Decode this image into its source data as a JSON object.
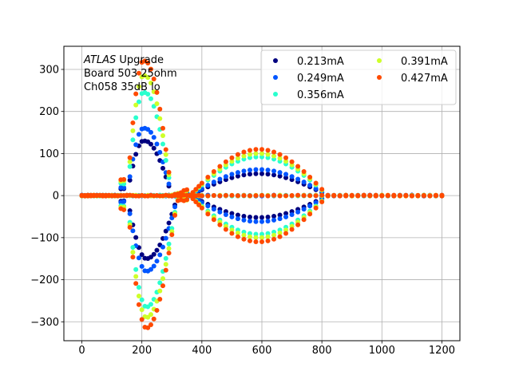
{
  "chart_data": {
    "type": "scatter",
    "annotation": {
      "lines": [
        {
          "italic": "ATLAS",
          "rest": " Upgrade"
        },
        {
          "italic": "",
          "rest": " Board 503 25ohm"
        },
        {
          "italic": "",
          "rest": " Ch058 35dB lo"
        }
      ]
    },
    "xlim": [
      -60,
      1260
    ],
    "ylim": [
      -345,
      355
    ],
    "xticks": [
      0,
      200,
      400,
      600,
      800,
      1000,
      1200
    ],
    "yticks": [
      -300,
      -200,
      -100,
      0,
      100,
      200,
      300
    ],
    "grid": true,
    "legend_placement": "upper-right, 2 columns",
    "series": [
      {
        "name": "0.213mA",
        "color": "#00007f",
        "pulse": {
          "peak": 130,
          "neg": -150,
          "negAt": 220,
          "posAt": 160,
          "eye": 52,
          "noise": 2
        }
      },
      {
        "name": "0.249mA",
        "color": "#0055ff",
        "pulse": {
          "peak": 160,
          "neg": -180,
          "negAt": 215,
          "posAt": 165,
          "eye": 62,
          "noise": 2
        }
      },
      {
        "name": "0.356mA",
        "color": "#29ffce",
        "pulse": {
          "peak": 245,
          "neg": -265,
          "negAt": 205,
          "posAt": 175,
          "eye": 92,
          "noise": 2
        }
      },
      {
        "name": "0.391mA",
        "color": "#ceff29",
        "pulse": {
          "peak": 285,
          "neg": -290,
          "negAt": 200,
          "posAt": 180,
          "eye": 100,
          "noise": 2
        }
      },
      {
        "name": "0.427mA",
        "color": "#ff4a00",
        "pulse": {
          "peak": 320,
          "neg": -315,
          "negAt": 195,
          "posAt": 185,
          "eye": 110,
          "noise": 2
        }
      }
    ],
    "x": [
      0,
      10,
      20,
      30,
      40,
      50,
      60,
      70,
      80,
      90,
      100,
      110,
      120,
      130,
      140,
      150,
      160,
      170,
      180,
      190,
      200,
      210,
      220,
      230,
      240,
      250,
      260,
      270,
      280,
      290,
      300,
      310,
      320,
      330,
      340,
      350,
      360,
      370,
      380,
      390,
      400,
      420,
      440,
      460,
      480,
      500,
      520,
      540,
      560,
      580,
      600,
      620,
      640,
      660,
      680,
      700,
      720,
      740,
      760,
      780,
      800,
      820,
      840,
      860,
      880,
      900,
      920,
      940,
      960,
      980,
      1000,
      1020,
      1040,
      1060,
      1080,
      1100,
      1120,
      1140,
      1160,
      1180,
      1200
    ]
  }
}
